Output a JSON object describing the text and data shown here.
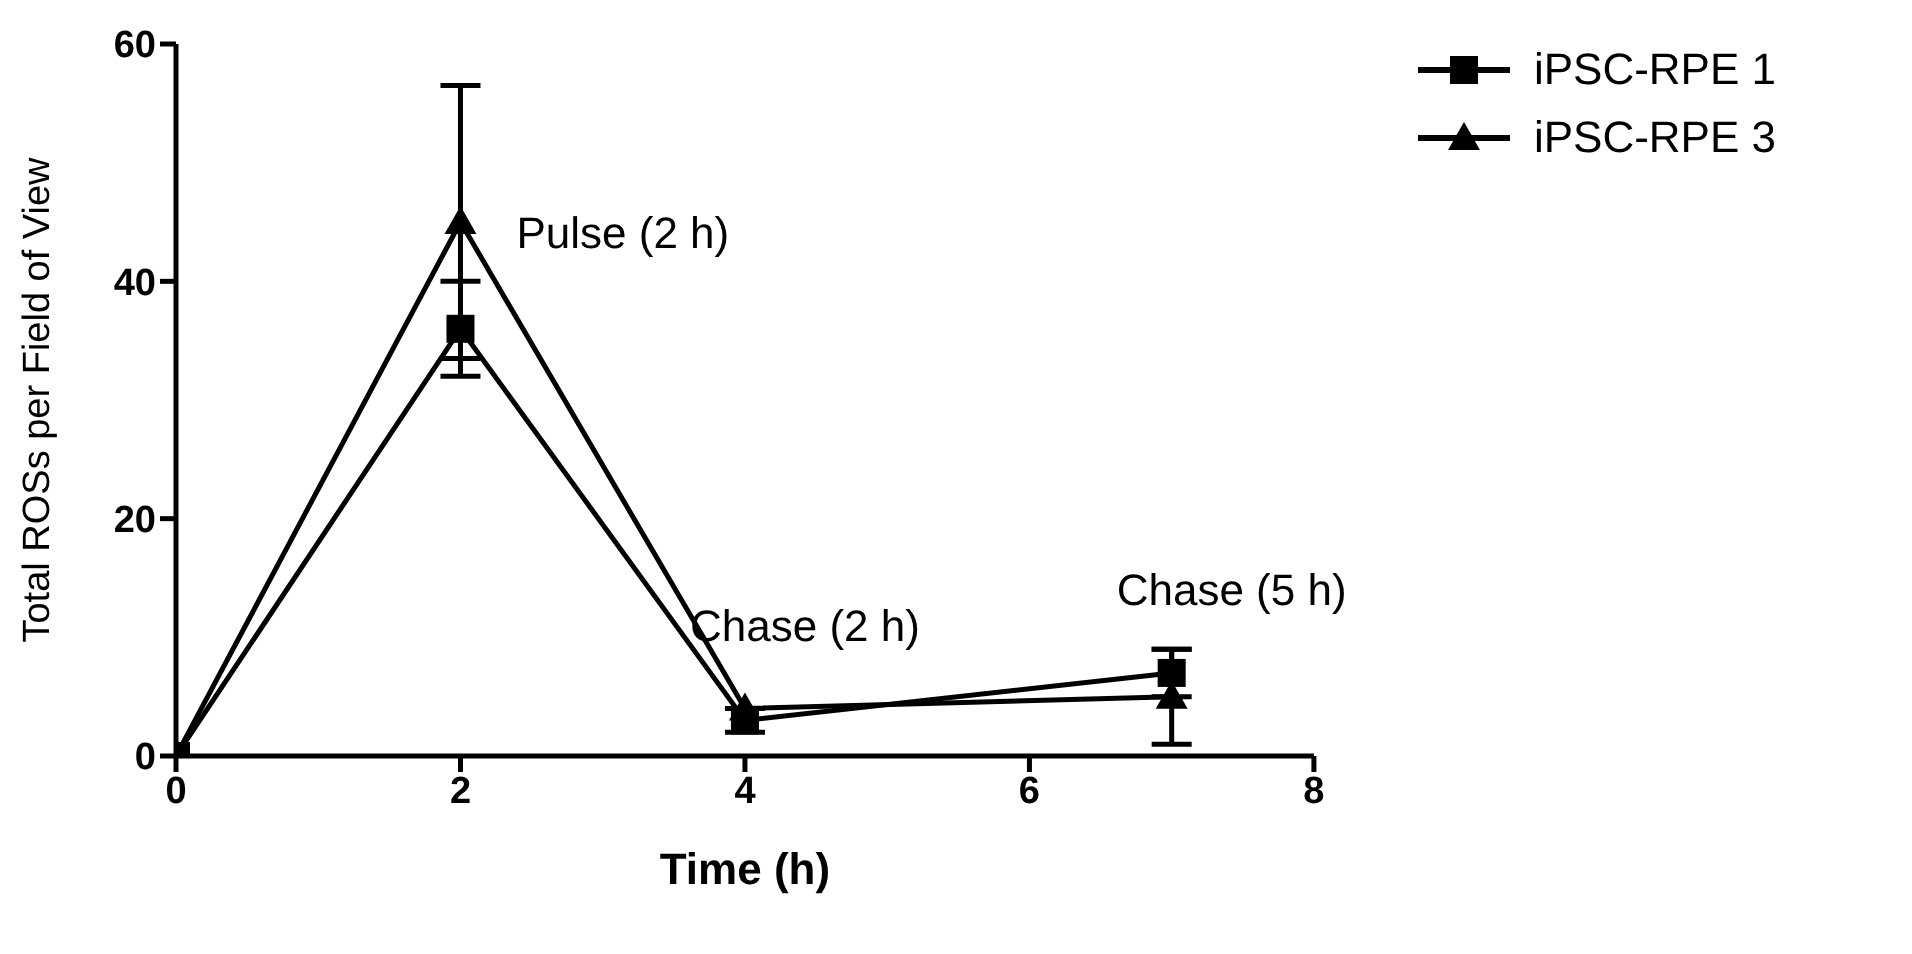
{
  "chart_data": {
    "type": "line",
    "xlabel": "Time (h)",
    "ylabel": "Total ROSs per Field of View",
    "xlim": [
      0,
      8
    ],
    "xticks": [
      0,
      2,
      4,
      6,
      8
    ],
    "ylim": [
      0,
      60
    ],
    "yticks": [
      0,
      20,
      40,
      60
    ],
    "grid": false,
    "legend": "top right",
    "line_style": "solid",
    "series": [
      {
        "name": "iPSC-RPE 1",
        "color": "#000000",
        "marker": "square",
        "x": [
          0,
          2,
          4,
          7
        ],
        "values": [
          0,
          36,
          3,
          7
        ],
        "errors": [
          null,
          4,
          1,
          2
        ]
      },
      {
        "name": "iPSC-RPE 3",
        "color": "#000000",
        "marker": "triangle",
        "x": [
          0,
          2,
          4,
          7
        ],
        "values": [
          0,
          45,
          4,
          5
        ],
        "errors": [
          null,
          11.5,
          null,
          4
        ]
      }
    ],
    "annotations": [
      {
        "text": "Pulse (2 h)",
        "x": 2,
        "y": 45
      },
      {
        "text": "Chase (2 h)",
        "x": 4,
        "y": 4
      },
      {
        "text": "Chase (5 h)",
        "x": 7,
        "y": 7
      }
    ]
  }
}
